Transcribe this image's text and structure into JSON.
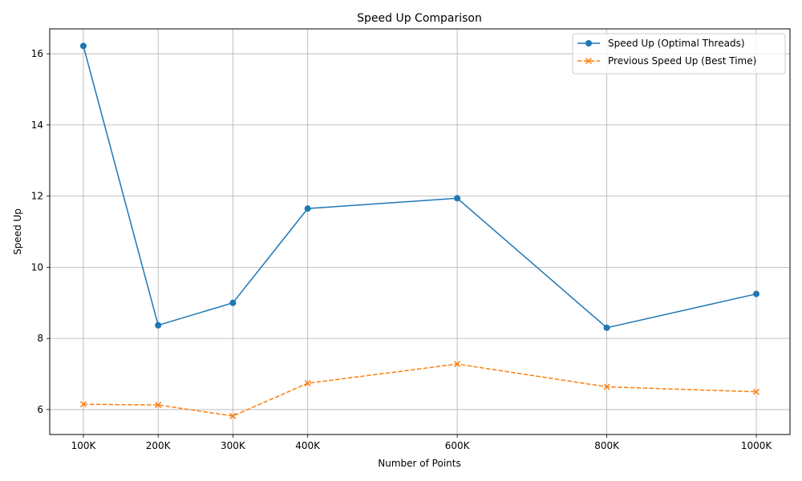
{
  "chart_data": {
    "type": "line",
    "title": "Speed Up Comparison",
    "xlabel": "Number of Points",
    "ylabel": "Speed Up",
    "x": [
      100000,
      200000,
      300000,
      400000,
      600000,
      800000,
      1000000
    ],
    "x_tick_labels": [
      "100K",
      "200K",
      "300K",
      "400K",
      "600K",
      "800K",
      "1000K"
    ],
    "y_ticks": [
      6,
      8,
      10,
      12,
      14,
      16
    ],
    "xlim": [
      55000,
      1045000
    ],
    "ylim": [
      5.3,
      16.7
    ],
    "grid": true,
    "legend_position": "top-right",
    "series": [
      {
        "name": "Speed Up (Optimal Threads)",
        "values": [
          16.22,
          8.37,
          9.0,
          11.65,
          11.94,
          8.3,
          9.25
        ],
        "color": "#1f77b4",
        "line_style": "solid",
        "marker": "circle"
      },
      {
        "name": "Previous Speed Up (Best Time)",
        "values": [
          6.15,
          6.13,
          5.82,
          6.74,
          7.28,
          6.64,
          6.5
        ],
        "color": "#ff7f0e",
        "line_style": "dashed",
        "marker": "x"
      }
    ]
  }
}
